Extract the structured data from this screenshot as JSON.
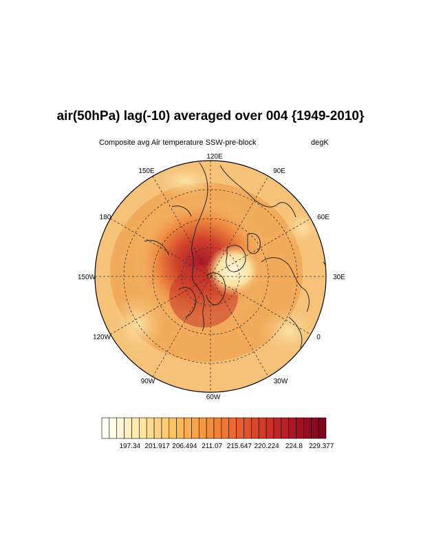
{
  "header": {
    "title": "air(50hPa) lag(-10) averaged over 004 {1949-2010}",
    "subtitle_left": "Composite avg Air temperature SSW-pre-block",
    "subtitle_right": "degK"
  },
  "map": {
    "projection": "north-polar-stereographic",
    "lon_labels": [
      "120E",
      "90E",
      "60E",
      "30E",
      "0",
      "30W",
      "60W",
      "90W",
      "120W",
      "150W",
      "180",
      "150E"
    ],
    "grid": "dashed lat/lon lines",
    "colors": {
      "warm_core": "#a8182a",
      "mid": "#e8743a",
      "outer": "#f6c27a",
      "edge": "#fbe3a6"
    }
  },
  "colorbar": {
    "tick_labels": [
      "197.34",
      "201.917",
      "206.494",
      "211.07",
      "215.647",
      "220.224",
      "224.8",
      "229.377"
    ],
    "colors": [
      "#fffff5",
      "#fffbe6",
      "#fff6d5",
      "#fff0c2",
      "#ffeab0",
      "#fde3a0",
      "#fddc92",
      "#fcd383",
      "#fccb74",
      "#fbc366",
      "#fbb95a",
      "#f9ae50",
      "#f8a348",
      "#f69840",
      "#f48d3a",
      "#f18236",
      "#ee7632",
      "#ea6a2f",
      "#e55e2c",
      "#e0522a",
      "#da4629",
      "#d33b28",
      "#cb3128",
      "#c22728",
      "#b81e27",
      "#ad1626",
      "#a21024",
      "#960c22",
      "#8a091f",
      "#7c071c"
    ]
  }
}
